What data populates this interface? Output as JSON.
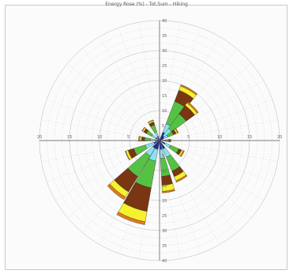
{
  "chart_data": {
    "type": "polar-stacked-bar",
    "title": "Energy Rose (%) - Tot.Sum - Hiking",
    "angle_unit": "deg",
    "radial_max": 40,
    "grid": true,
    "sectors": [
      {
        "angle": 30,
        "width": 18,
        "stack": [
          3,
          6,
          14,
          18,
          19.5,
          20
        ]
      },
      {
        "angle": 45,
        "width": 18,
        "stack": [
          2,
          5,
          11,
          14.5,
          15.5,
          16
        ]
      },
      {
        "angle": 60,
        "width": 15,
        "stack": [
          1.5,
          3,
          5,
          6,
          6.5,
          6.8
        ]
      },
      {
        "angle": 90,
        "width": 14,
        "stack": [
          1,
          2,
          3,
          3.5,
          3.7,
          3.8
        ]
      },
      {
        "angle": 120,
        "width": 14,
        "stack": [
          2,
          4,
          7,
          8,
          8.6,
          9
        ]
      },
      {
        "angle": 150,
        "width": 16,
        "stack": [
          3,
          6,
          11,
          13,
          14.5,
          15
        ]
      },
      {
        "angle": 170,
        "width": 14,
        "stack": [
          3,
          6,
          12,
          15,
          17,
          17.5
        ]
      },
      {
        "angle": 200,
        "width": 20,
        "stack": [
          3,
          7,
          16,
          24,
          27.5,
          28.5
        ]
      },
      {
        "angle": 220,
        "width": 18,
        "stack": [
          3,
          6,
          14,
          20,
          22,
          23
        ]
      },
      {
        "angle": 245,
        "width": 16,
        "stack": [
          2,
          5,
          9,
          11,
          11.8,
          12
        ]
      },
      {
        "angle": 275,
        "width": 14,
        "stack": [
          1.5,
          3,
          5,
          6,
          6.6,
          7
        ]
      },
      {
        "angle": 305,
        "width": 14,
        "stack": [
          1.5,
          3,
          5,
          6,
          6.5,
          6.7
        ]
      },
      {
        "angle": 335,
        "width": 16,
        "stack": [
          1.5,
          3,
          5.5,
          6.5,
          7,
          7.2
        ]
      }
    ],
    "stack_colors": [
      "#1a2fa0",
      "#8ee0ee",
      "#55c244",
      "#7a3512",
      "#f4f22c",
      "#e07a20"
    ],
    "axis_ticks": {
      "north": [
        "",
        "5",
        "10",
        "15",
        "20",
        "25",
        "30",
        "35",
        "40"
      ],
      "east": [
        "",
        "5",
        "10",
        "15",
        "20"
      ],
      "west": [
        "",
        "5",
        "10",
        "15",
        "20"
      ],
      "south": [
        "",
        "5",
        "10",
        "15",
        "20",
        "25",
        "30",
        "35",
        "40"
      ]
    }
  }
}
